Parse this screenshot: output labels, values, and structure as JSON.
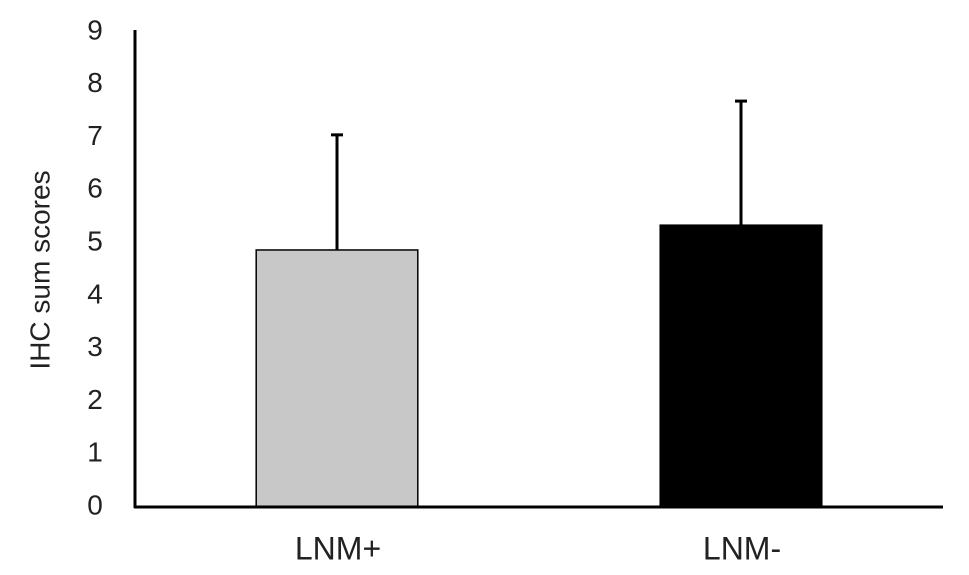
{
  "chart_data": {
    "type": "bar",
    "y_label": "IHC sum scores",
    "categories": [
      "LNM+",
      "LNM-"
    ],
    "values": [
      4.87,
      5.34
    ],
    "errors": [
      2.2,
      2.37
    ],
    "colors": [
      "#c8c8c8",
      "#000000"
    ],
    "ylim": [
      0,
      9
    ],
    "yticks": [
      0,
      1,
      2,
      3,
      4,
      5,
      6,
      7,
      8,
      9
    ],
    "grid": false
  }
}
